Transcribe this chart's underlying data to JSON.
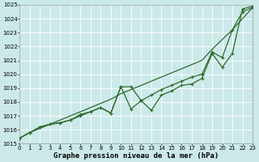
{
  "xlabel": "Graphe pression niveau de la mer (hPa)",
  "background_color": "#cce9e9",
  "grid_color": "#ffffff",
  "line_color": "#2d6a2d",
  "x_values": [
    0,
    1,
    2,
    3,
    4,
    5,
    6,
    7,
    8,
    9,
    10,
    11,
    12,
    13,
    14,
    15,
    16,
    17,
    18,
    19,
    20,
    21,
    22,
    23
  ],
  "series1": [
    1015.4,
    1015.8,
    1016.2,
    1016.4,
    1016.5,
    1016.7,
    1017.0,
    1017.3,
    1017.6,
    1017.2,
    1019.1,
    1017.5,
    1018.1,
    1017.4,
    1018.5,
    1018.8,
    1019.2,
    1019.3,
    1019.7,
    1021.5,
    1020.5,
    1021.5,
    1024.7,
    1024.9
  ],
  "series2": [
    1015.4,
    1015.8,
    1016.2,
    1016.4,
    1016.5,
    1016.7,
    1017.1,
    1017.3,
    1017.6,
    1017.2,
    1019.1,
    1019.1,
    1018.1,
    1018.5,
    1018.9,
    1019.2,
    1019.5,
    1019.8,
    1020.0,
    1021.6,
    1021.2,
    1023.2,
    1024.5,
    1024.8
  ],
  "series3": [
    1015.4,
    1015.8,
    1016.1,
    1016.4,
    1016.7,
    1017.0,
    1017.3,
    1017.6,
    1017.9,
    1018.2,
    1018.6,
    1018.9,
    1019.2,
    1019.5,
    1019.8,
    1020.1,
    1020.4,
    1020.7,
    1021.0,
    1021.8,
    1022.5,
    1023.2,
    1024.0,
    1024.8
  ],
  "ylim_min": 1015,
  "ylim_max": 1025,
  "yticks": [
    1015,
    1016,
    1017,
    1018,
    1019,
    1020,
    1021,
    1022,
    1023,
    1024,
    1025
  ],
  "xticks": [
    0,
    1,
    2,
    3,
    4,
    5,
    6,
    7,
    8,
    9,
    10,
    11,
    12,
    13,
    14,
    15,
    16,
    17,
    18,
    19,
    20,
    21,
    22,
    23
  ],
  "markersize": 3.5,
  "linewidth": 0.9,
  "xlabel_fontsize": 6.5,
  "tick_fontsize": 5.0,
  "figwidth": 3.2,
  "figheight": 2.0,
  "dpi": 100
}
